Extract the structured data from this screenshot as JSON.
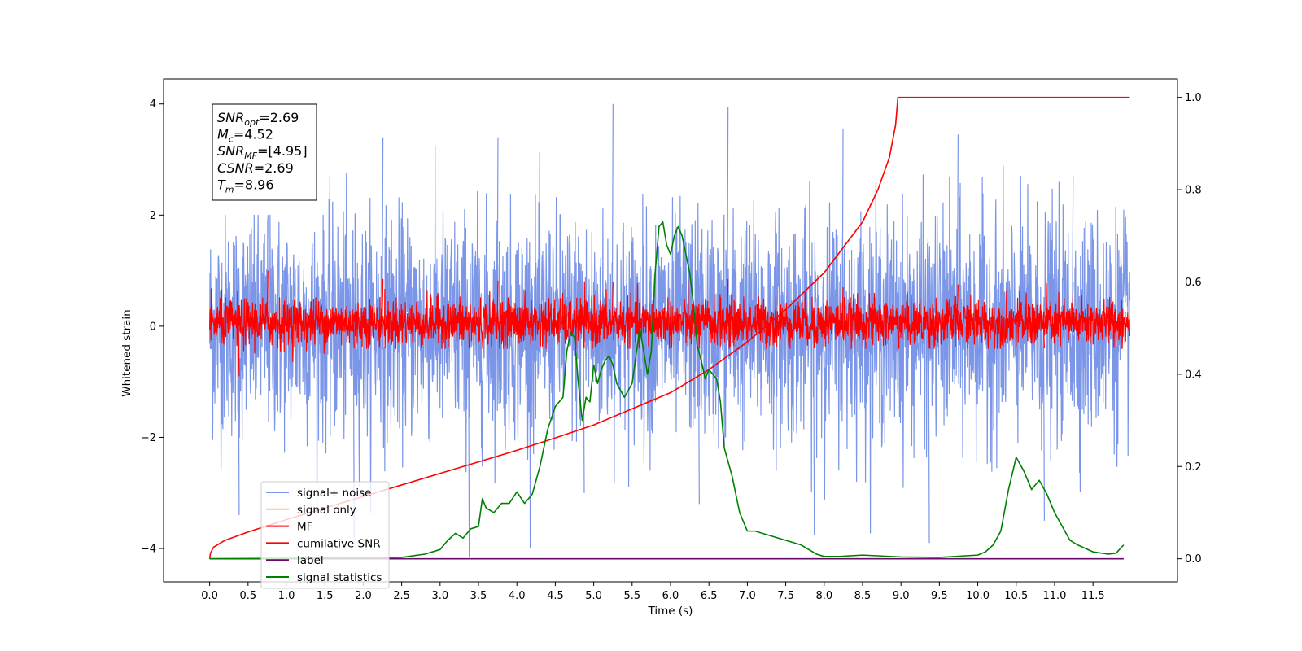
{
  "chart_data": {
    "type": "line",
    "xlabel": "Time (s)",
    "ylabel_left": "Whitened strain",
    "ylabel_right": "",
    "xlim": [
      -0.6,
      12.6
    ],
    "ylim_left": [
      -4.6,
      4.45
    ],
    "ylim_right": [
      -0.05,
      1.04
    ],
    "x_ticks": [
      "0.0",
      "0.5",
      "1.0",
      "1.5",
      "2.0",
      "2.5",
      "3.0",
      "3.5",
      "4.0",
      "4.5",
      "5.0",
      "5.5",
      "6.0",
      "6.5",
      "7.0",
      "7.5",
      "8.0",
      "8.5",
      "9.0",
      "9.5",
      "10.0",
      "10.5",
      "11.0",
      "11.5"
    ],
    "y_ticks_left": [
      "4",
      "2",
      "0",
      "−2",
      "−4"
    ],
    "y_ticks_right": [
      "1.0",
      "0.8",
      "0.6",
      "0.4",
      "0.2",
      "0.0"
    ],
    "grid": false,
    "legend_position": "lower-left",
    "annotation": {
      "lines": [
        {
          "base": "SNR",
          "sub": "opt",
          "value": "=2.69"
        },
        {
          "base": "M",
          "sub": "c",
          "value": "=4.52"
        },
        {
          "base": "SNR",
          "sub": "MF",
          "value": "=[4.95]"
        },
        {
          "base": "CSNR",
          "sub": "",
          "value": "=2.69"
        },
        {
          "base": "T",
          "sub": "m",
          "value": "=8.96"
        }
      ]
    },
    "series": [
      {
        "name": "signal+ noise",
        "color": "#7b96e8",
        "axis": "left",
        "style": "noise",
        "x_range": [
          0.0,
          12.0
        ],
        "band_left": [
          -1.8,
          1.8
        ],
        "peaks_high": [
          2.0,
          3.4,
          3.4,
          4.0,
          3.95,
          3.55,
          3.45,
          2.7
        ],
        "peaks_low": [
          -3.4,
          -3.8,
          -4.15,
          -3.0,
          -3.2,
          -3.75,
          -3.9,
          -3.5
        ],
        "x_end": 11.98
      },
      {
        "name": "signal only",
        "color": "#ffc07f",
        "axis": "left",
        "x": [],
        "y": []
      },
      {
        "name": "MF",
        "color": "#ff0000",
        "axis": "left",
        "style": "noise",
        "x_range": [
          0.0,
          12.0
        ],
        "band_left": [
          -0.32,
          0.45
        ],
        "peaks_high": [
          1.0,
          0.85,
          0.82,
          0.8,
          0.85,
          0.7,
          0.75,
          0.8
        ],
        "peaks_low": [
          -0.9,
          -0.4,
          -0.4,
          -0.4,
          -0.4,
          -0.4,
          -0.4,
          -0.4
        ],
        "x_end": 11.98
      },
      {
        "name": "cumilative SNR",
        "color": "#ff0000",
        "axis": "right",
        "x": [
          0.0,
          0.01,
          0.05,
          0.2,
          0.5,
          1.0,
          1.5,
          2.0,
          2.5,
          3.0,
          3.5,
          4.0,
          4.5,
          5.0,
          5.5,
          6.0,
          6.5,
          7.0,
          7.5,
          8.0,
          8.5,
          8.7,
          8.85,
          8.93,
          8.96,
          9.5,
          10.0,
          11.0,
          11.98
        ],
        "y": [
          0.0,
          0.012,
          0.025,
          0.04,
          0.058,
          0.085,
          0.11,
          0.135,
          0.16,
          0.185,
          0.21,
          0.235,
          0.262,
          0.29,
          0.325,
          0.36,
          0.41,
          0.47,
          0.54,
          0.62,
          0.73,
          0.8,
          0.87,
          0.94,
          1.0,
          1.0,
          1.0,
          1.0,
          1.0
        ]
      },
      {
        "name": "label",
        "color": "#6a0a6a",
        "axis": "right",
        "x": [
          0.0,
          11.9
        ],
        "y": [
          0.0,
          0.0
        ]
      },
      {
        "name": "signal statistics",
        "color": "#008000",
        "axis": "right",
        "x": [
          0.0,
          1.0,
          2.0,
          2.5,
          2.8,
          3.0,
          3.1,
          3.2,
          3.3,
          3.4,
          3.5,
          3.55,
          3.6,
          3.7,
          3.8,
          3.9,
          4.0,
          4.1,
          4.2,
          4.3,
          4.4,
          4.5,
          4.6,
          4.65,
          4.7,
          4.75,
          4.8,
          4.85,
          4.9,
          4.95,
          5.0,
          5.05,
          5.1,
          5.15,
          5.2,
          5.25,
          5.3,
          5.4,
          5.5,
          5.6,
          5.7,
          5.75,
          5.8,
          5.85,
          5.9,
          5.95,
          6.0,
          6.05,
          6.1,
          6.15,
          6.2,
          6.25,
          6.3,
          6.35,
          6.4,
          6.45,
          6.5,
          6.55,
          6.6,
          6.65,
          6.7,
          6.8,
          6.9,
          7.0,
          7.1,
          7.2,
          7.5,
          7.7,
          7.9,
          8.0,
          8.2,
          8.5,
          9.0,
          9.5,
          10.0,
          10.1,
          10.2,
          10.3,
          10.4,
          10.5,
          10.6,
          10.7,
          10.8,
          10.9,
          11.0,
          11.1,
          11.2,
          11.3,
          11.5,
          11.7,
          11.8,
          11.9
        ],
        "y": [
          0.0,
          0.001,
          0.002,
          0.003,
          0.01,
          0.02,
          0.04,
          0.055,
          0.045,
          0.065,
          0.07,
          0.13,
          0.11,
          0.1,
          0.12,
          0.12,
          0.145,
          0.12,
          0.14,
          0.2,
          0.28,
          0.33,
          0.35,
          0.45,
          0.49,
          0.48,
          0.38,
          0.3,
          0.35,
          0.34,
          0.42,
          0.38,
          0.41,
          0.43,
          0.44,
          0.42,
          0.38,
          0.35,
          0.38,
          0.5,
          0.4,
          0.45,
          0.62,
          0.72,
          0.73,
          0.68,
          0.66,
          0.7,
          0.72,
          0.7,
          0.66,
          0.62,
          0.55,
          0.46,
          0.43,
          0.39,
          0.41,
          0.4,
          0.39,
          0.34,
          0.24,
          0.18,
          0.1,
          0.06,
          0.06,
          0.055,
          0.04,
          0.03,
          0.01,
          0.005,
          0.005,
          0.008,
          0.004,
          0.003,
          0.008,
          0.015,
          0.03,
          0.06,
          0.15,
          0.22,
          0.19,
          0.15,
          0.17,
          0.14,
          0.1,
          0.07,
          0.04,
          0.03,
          0.015,
          0.01,
          0.012,
          0.03
        ]
      }
    ]
  }
}
